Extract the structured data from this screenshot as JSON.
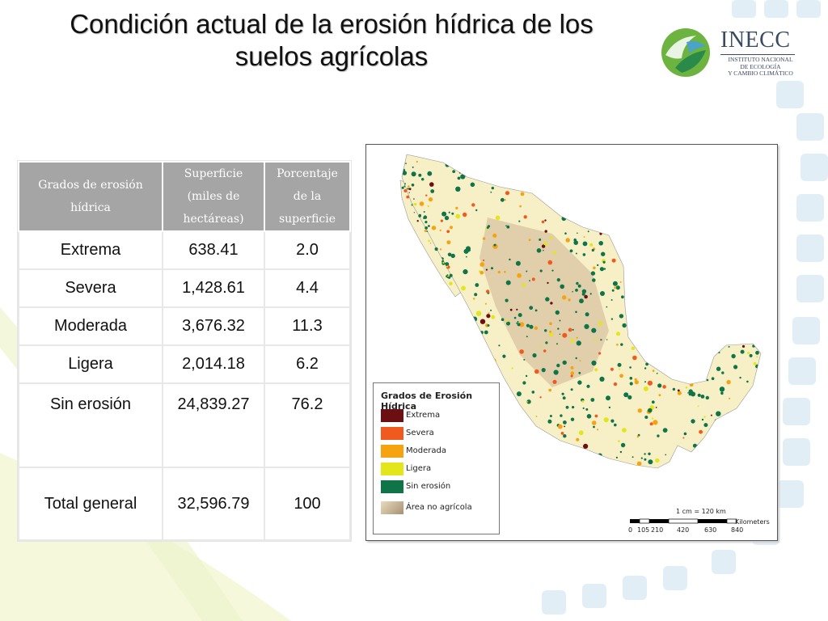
{
  "slide": {
    "title": "Condición actual de la erosión hídrica de los suelos agrícolas"
  },
  "logo": {
    "name": "INECC",
    "subtitle_lines": [
      "INSTITUTO NACIONAL",
      "DE ECOLOGÍA",
      "Y CAMBIO CLIMÁTICO"
    ]
  },
  "table": {
    "headers": [
      "Grados de erosión hídrica",
      "Superficie (miles de hectáreas)",
      "Porcentaje de la superficie"
    ],
    "rows": [
      {
        "grado": "Extrema",
        "superficie": "638.41",
        "porcentaje": "2.0"
      },
      {
        "grado": "Severa",
        "superficie": "1,428.61",
        "porcentaje": "4.4"
      },
      {
        "grado": "Moderada",
        "superficie": "3,676.32",
        "porcentaje": "11.3"
      },
      {
        "grado": "Ligera",
        "superficie": "2,014.18",
        "porcentaje": "6.2"
      },
      {
        "grado": "Sin erosión",
        "superficie": "24,839.27",
        "porcentaje": "76.2"
      },
      {
        "grado": "Total general",
        "superficie": "32,596.79",
        "porcentaje": "100"
      }
    ]
  },
  "map": {
    "legend_title": "Grados de Erosión Hídrica",
    "legend_items": [
      {
        "label": "Extrema",
        "color": "#6b0f12"
      },
      {
        "label": "Severa",
        "color": "#f05a1e"
      },
      {
        "label": "Moderada",
        "color": "#f5a30f"
      },
      {
        "label": "Ligera",
        "color": "#e3e61a"
      },
      {
        "label": "Sin erosión",
        "color": "#0f7548"
      },
      {
        "label": "Área no agrícola",
        "color": "#cbb898"
      }
    ],
    "scale_text": "1 cm = 120 km",
    "scale_unit": "Kilometers",
    "scale_ticks": [
      "0",
      "105",
      "210",
      "420",
      "630",
      "840"
    ],
    "land_color": "#f7efc5",
    "water_color": "#ffffff"
  }
}
